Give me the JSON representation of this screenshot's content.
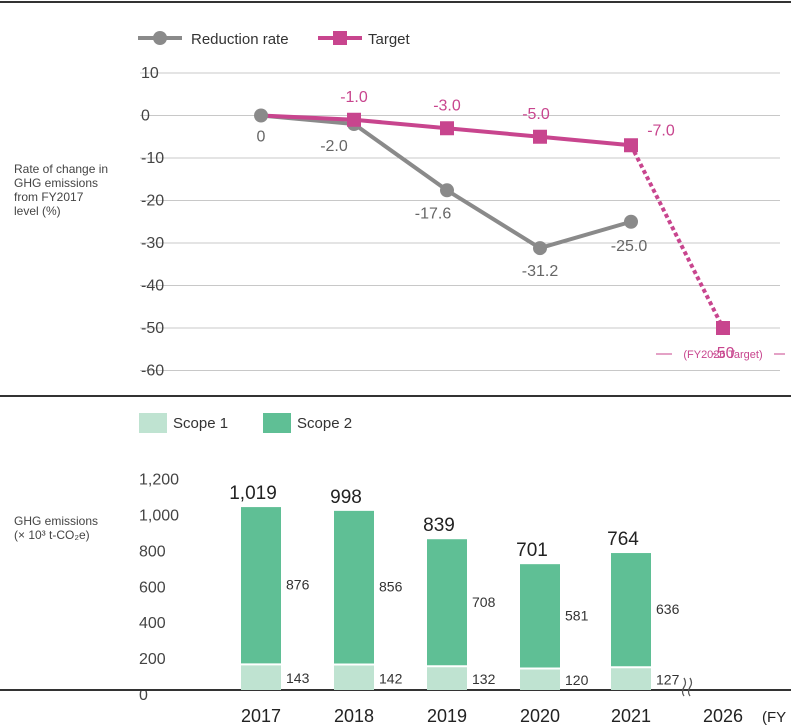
{
  "colors": {
    "reduction": "#8a8a8a",
    "target": "#c8458e",
    "scope1": "#bfe3d1",
    "scope2": "#5fbf95",
    "grid": "#c8c8c8",
    "axis_line": "#333333"
  },
  "chart_data": [
    {
      "type": "line",
      "ylabel": "Rate of change in GHG emissions from FY2017 level (%)",
      "ylabel_lines": [
        "Rate of change in",
        "GHG emissions",
        "from FY2017",
        "level (%)"
      ],
      "ylim": [
        -60,
        10
      ],
      "yticks": [
        "10",
        "0",
        "-10",
        "-20",
        "-30",
        "-40",
        "-50",
        "-60"
      ],
      "ytick_values": [
        10,
        0,
        -10,
        -20,
        -30,
        -40,
        -50,
        -60
      ],
      "x": [
        "2017",
        "2018",
        "2019",
        "2020",
        "2021",
        "2026"
      ],
      "grid": true,
      "legend_position": "top-left",
      "series": [
        {
          "name": "Reduction rate",
          "values": [
            0,
            -2.0,
            -17.6,
            -31.2,
            -25.0,
            null
          ],
          "labels": [
            "0",
            "-2.0",
            "-17.6",
            "-31.2",
            "-25.0",
            ""
          ]
        },
        {
          "name": "Target",
          "values": [
            0,
            -1.0,
            -3.0,
            -5.0,
            -7.0,
            -50
          ],
          "labels": [
            "",
            "-1.0",
            "-3.0",
            "-5.0",
            "-7.0",
            "-50"
          ],
          "dashed_from": "2021"
        }
      ],
      "annotation": "(FY2026 Target)"
    },
    {
      "type": "bar",
      "stacked": true,
      "ylabel": "GHG emissions (× 10³ t-CO₂e)",
      "ylabel_lines": [
        "GHG emissions",
        "(× 10³ t-CO₂e)"
      ],
      "ylim": [
        0,
        1200
      ],
      "yticks": [
        "1,200",
        "1,000",
        "800",
        "600",
        "400",
        "200",
        "0"
      ],
      "ytick_values": [
        1200,
        1000,
        800,
        600,
        400,
        200,
        0
      ],
      "categories": [
        "2017",
        "2018",
        "2019",
        "2020",
        "2021",
        "2026"
      ],
      "xlabel": "(FY",
      "legend_position": "top-left",
      "series": [
        {
          "name": "Scope 1",
          "values": [
            143,
            142,
            132,
            120,
            127,
            null
          ],
          "labels": [
            "143",
            "142",
            "132",
            "120",
            "127",
            ""
          ]
        },
        {
          "name": "Scope 2",
          "values": [
            876,
            856,
            708,
            581,
            636,
            null
          ],
          "labels": [
            "876",
            "856",
            "708",
            "581",
            "636",
            ""
          ]
        }
      ],
      "totals": [
        1019,
        998,
        839,
        701,
        764,
        null
      ],
      "total_labels": [
        "1,019",
        "998",
        "839",
        "701",
        "764",
        ""
      ],
      "axis_break_before": "2026"
    }
  ]
}
